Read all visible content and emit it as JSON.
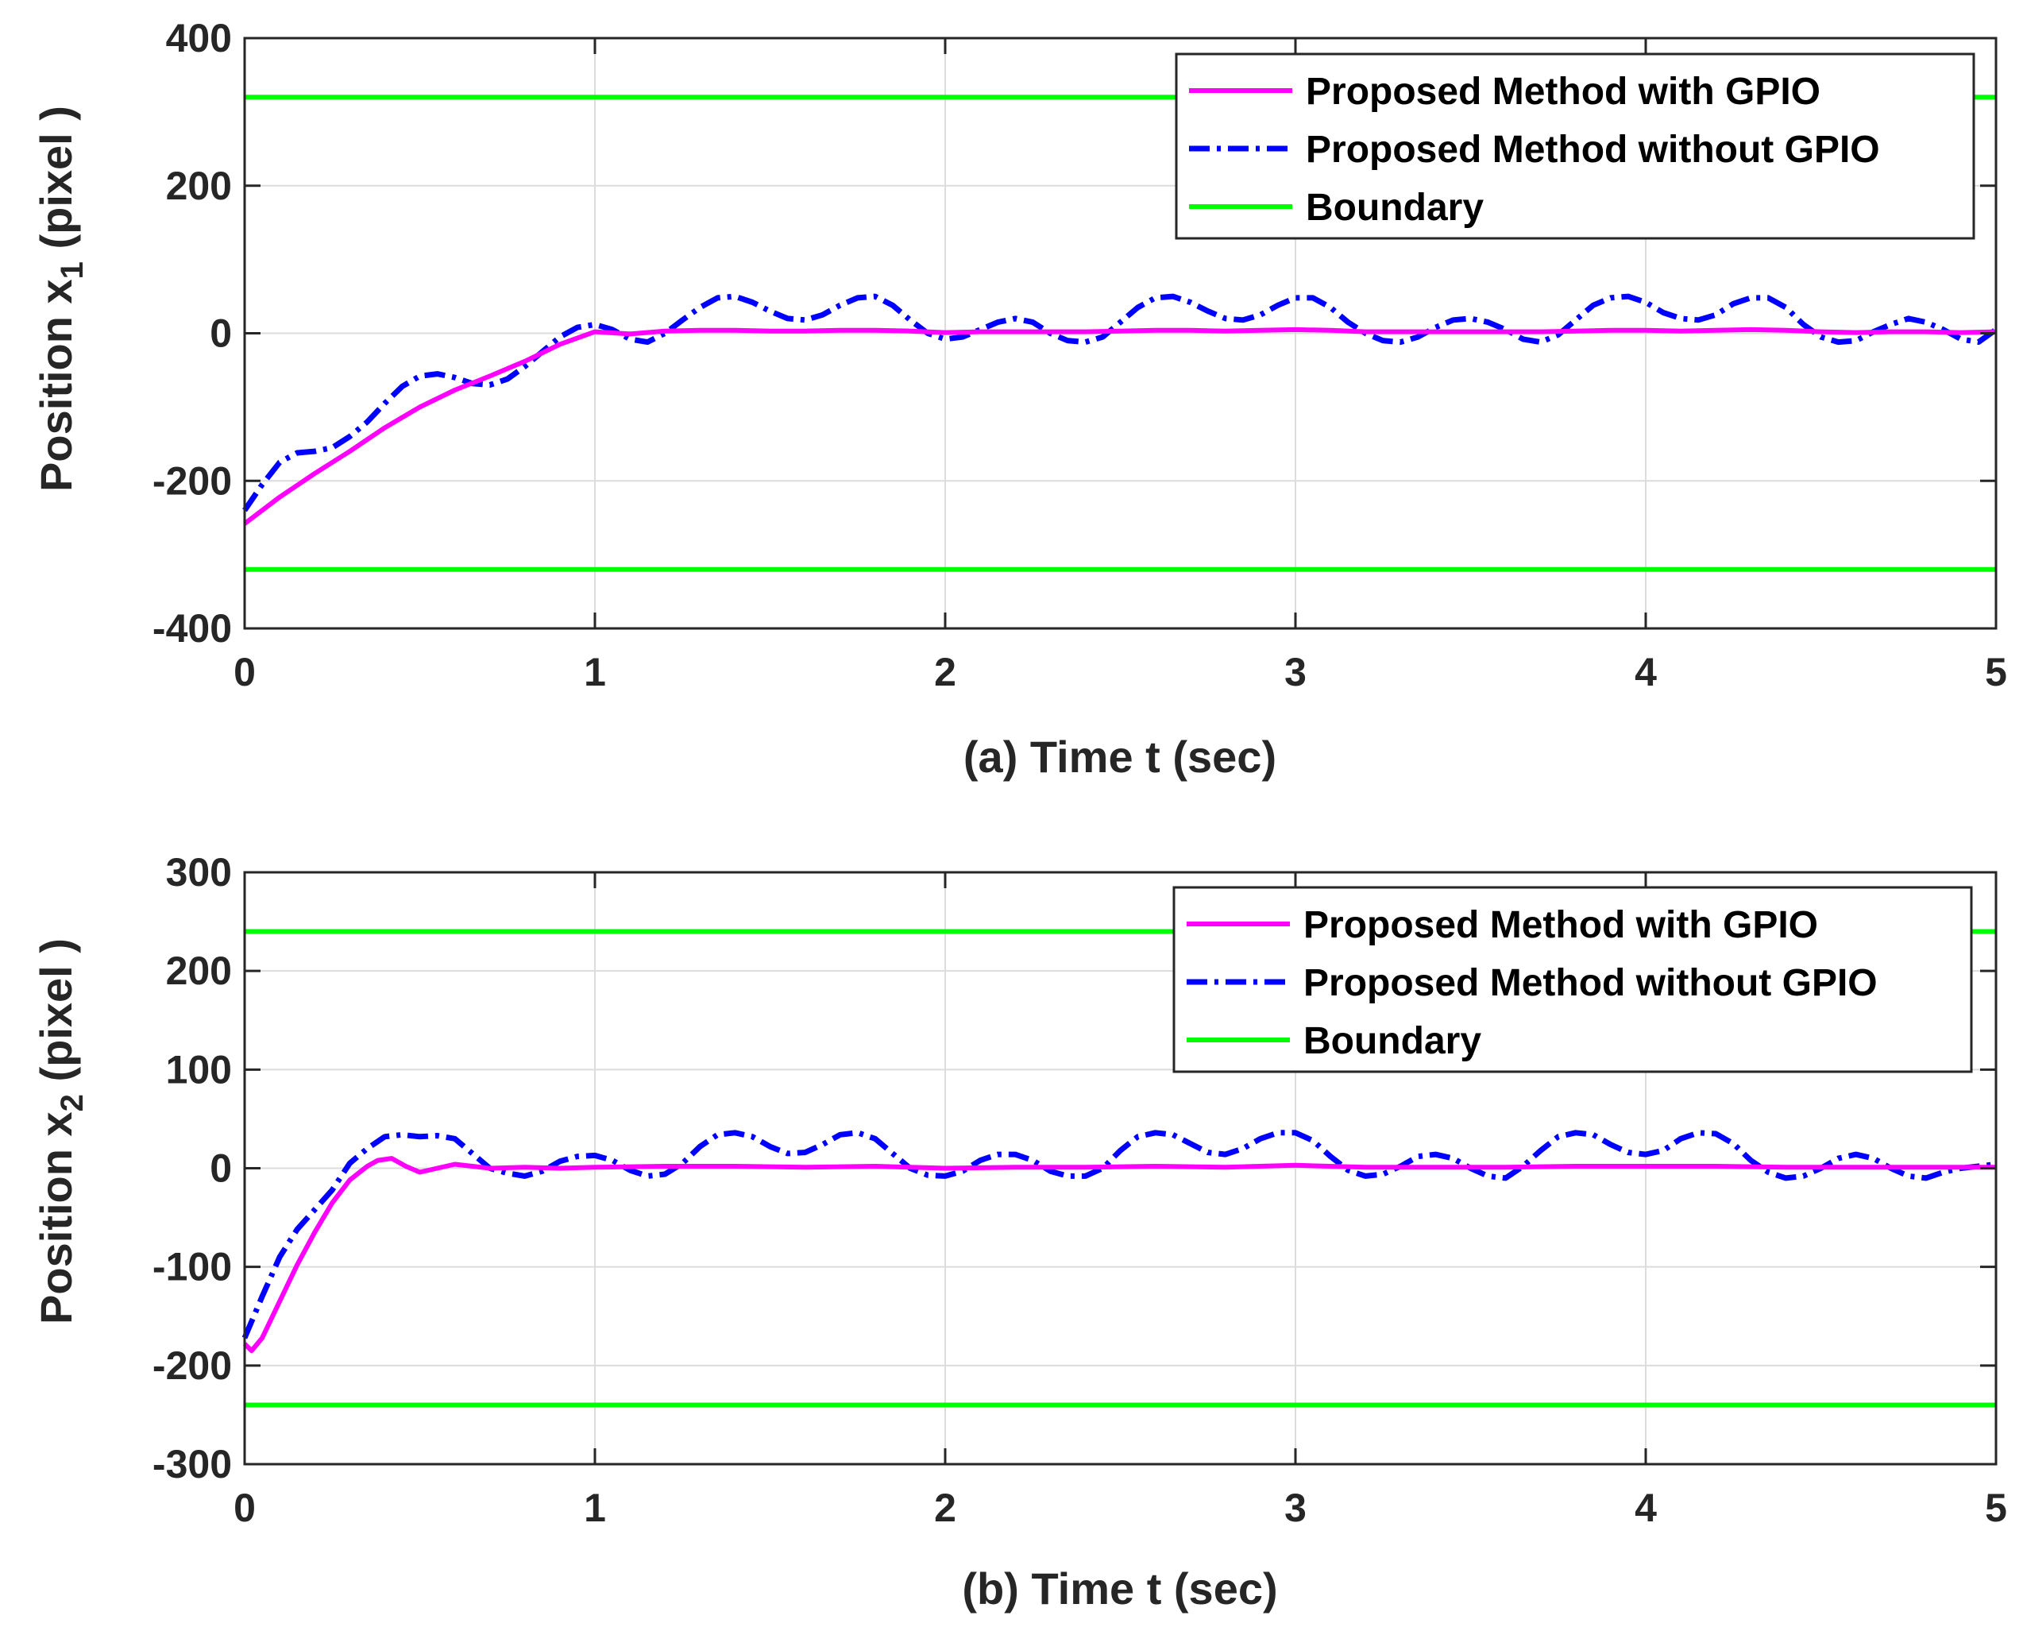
{
  "colors": {
    "with_gpio": "#ff00ff",
    "without_gpio": "#0000ff",
    "boundary": "#00ff00",
    "grid": "#dcdcdc",
    "axis": "#262626"
  },
  "chart_data": [
    {
      "type": "line",
      "panel": "a",
      "xlabel": "(a) Time t (sec)",
      "ylabel": {
        "prefix": "Position x",
        "subscript": "1",
        "suffix": " (pixel )"
      },
      "xlim": [
        0,
        5
      ],
      "ylim": [
        -400,
        400
      ],
      "xticks": [
        0,
        1,
        2,
        3,
        4,
        5
      ],
      "yticks": [
        -400,
        -200,
        0,
        200,
        400
      ],
      "grid": true,
      "legend_position": "top-right",
      "series": [
        {
          "name": "Proposed Method with GPIO",
          "style": "solid",
          "color": "#ff00ff",
          "x": [
            0,
            0.1,
            0.2,
            0.3,
            0.4,
            0.5,
            0.6,
            0.7,
            0.8,
            0.9,
            1.0,
            1.1,
            1.2,
            1.3,
            1.4,
            1.5,
            1.6,
            1.7,
            1.8,
            1.9,
            2.0,
            2.1,
            2.2,
            2.3,
            2.4,
            2.5,
            2.6,
            2.7,
            2.8,
            2.9,
            3.0,
            3.1,
            3.2,
            3.3,
            3.4,
            3.5,
            3.6,
            3.7,
            3.8,
            3.9,
            4.0,
            4.1,
            4.2,
            4.3,
            4.4,
            4.5,
            4.6,
            4.7,
            4.8,
            4.9,
            5.0
          ],
          "y": [
            -258,
            -222,
            -190,
            -160,
            -128,
            -100,
            -77,
            -58,
            -38,
            -15,
            2,
            -1,
            3,
            4,
            4,
            3,
            3,
            4,
            4,
            3,
            1,
            2,
            2,
            2,
            2,
            3,
            4,
            4,
            3,
            4,
            5,
            4,
            2,
            2,
            2,
            2,
            2,
            2,
            3,
            4,
            4,
            3,
            4,
            5,
            4,
            2,
            1,
            2,
            2,
            1,
            2
          ]
        },
        {
          "name": "Proposed Method without GPIO",
          "style": "dashdot",
          "color": "#0000ff",
          "x": [
            0,
            0.05,
            0.1,
            0.15,
            0.2,
            0.25,
            0.3,
            0.35,
            0.4,
            0.45,
            0.5,
            0.55,
            0.6,
            0.65,
            0.7,
            0.75,
            0.8,
            0.85,
            0.9,
            0.95,
            1.0,
            1.05,
            1.1,
            1.15,
            1.2,
            1.25,
            1.3,
            1.35,
            1.4,
            1.45,
            1.5,
            1.55,
            1.6,
            1.65,
            1.7,
            1.75,
            1.8,
            1.85,
            1.9,
            1.95,
            2.0,
            2.05,
            2.1,
            2.15,
            2.2,
            2.25,
            2.3,
            2.35,
            2.4,
            2.45,
            2.5,
            2.55,
            2.6,
            2.65,
            2.7,
            2.75,
            2.8,
            2.85,
            2.9,
            2.95,
            3.0,
            3.05,
            3.1,
            3.15,
            3.2,
            3.25,
            3.3,
            3.35,
            3.4,
            3.45,
            3.5,
            3.55,
            3.6,
            3.65,
            3.7,
            3.75,
            3.8,
            3.85,
            3.9,
            3.95,
            4.0,
            4.05,
            4.1,
            4.15,
            4.2,
            4.25,
            4.3,
            4.35,
            4.4,
            4.45,
            4.5,
            4.55,
            4.6,
            4.65,
            4.7,
            4.75,
            4.8,
            4.85,
            4.9,
            4.95,
            5.0
          ],
          "y": [
            -240,
            -205,
            -175,
            -162,
            -160,
            -155,
            -140,
            -120,
            -95,
            -72,
            -58,
            -55,
            -60,
            -68,
            -70,
            -62,
            -45,
            -25,
            -5,
            8,
            12,
            5,
            -8,
            -12,
            0,
            18,
            35,
            48,
            50,
            42,
            30,
            20,
            18,
            25,
            38,
            48,
            50,
            38,
            18,
            0,
            -8,
            -5,
            5,
            15,
            20,
            15,
            0,
            -10,
            -12,
            -5,
            15,
            35,
            48,
            50,
            42,
            30,
            20,
            18,
            25,
            38,
            48,
            48,
            35,
            15,
            0,
            -10,
            -12,
            -5,
            8,
            18,
            20,
            15,
            5,
            -8,
            -12,
            -2,
            18,
            38,
            48,
            50,
            42,
            28,
            20,
            18,
            25,
            40,
            48,
            48,
            35,
            12,
            -5,
            -12,
            -10,
            2,
            12,
            20,
            15,
            5,
            -8,
            -12,
            5
          ]
        },
        {
          "name": "Boundary",
          "style": "solid",
          "color": "#00ff00",
          "x": [
            0,
            5
          ],
          "y": [
            320,
            320
          ]
        },
        {
          "name": "Boundary (lower)",
          "legend": false,
          "style": "solid",
          "color": "#00ff00",
          "x": [
            0,
            5
          ],
          "y": [
            -320,
            -320
          ]
        }
      ]
    },
    {
      "type": "line",
      "panel": "b",
      "xlabel": "(b) Time t (sec)",
      "ylabel": {
        "prefix": "Position x",
        "subscript": "2",
        "suffix": " (pixel )"
      },
      "xlim": [
        0,
        5
      ],
      "ylim": [
        -300,
        300
      ],
      "xticks": [
        0,
        1,
        2,
        3,
        4,
        5
      ],
      "yticks": [
        -300,
        -200,
        -100,
        0,
        100,
        200,
        300
      ],
      "grid": true,
      "legend_position": "top-right",
      "series": [
        {
          "name": "Proposed Method with GPIO",
          "style": "solid",
          "color": "#ff00ff",
          "x": [
            0,
            0.02,
            0.05,
            0.1,
            0.15,
            0.2,
            0.25,
            0.3,
            0.35,
            0.38,
            0.42,
            0.46,
            0.5,
            0.55,
            0.6,
            0.65,
            0.7,
            0.8,
            0.9,
            1.0,
            1.2,
            1.4,
            1.6,
            1.8,
            2.0,
            2.2,
            2.4,
            2.6,
            2.8,
            3.0,
            3.2,
            3.4,
            3.6,
            3.8,
            4.0,
            4.2,
            4.4,
            4.6,
            4.8,
            5.0
          ],
          "y": [
            -178,
            -185,
            -172,
            -135,
            -98,
            -65,
            -35,
            -12,
            2,
            8,
            10,
            2,
            -4,
            0,
            4,
            2,
            0,
            1,
            0,
            1,
            2,
            2,
            1,
            2,
            0,
            1,
            1,
            2,
            1,
            3,
            1,
            1,
            1,
            2,
            2,
            2,
            1,
            1,
            1,
            1
          ]
        },
        {
          "name": "Proposed Method without GPIO",
          "style": "dashdot",
          "color": "#0000ff",
          "x": [
            0,
            0.05,
            0.1,
            0.15,
            0.2,
            0.25,
            0.3,
            0.35,
            0.4,
            0.45,
            0.5,
            0.55,
            0.6,
            0.65,
            0.7,
            0.75,
            0.8,
            0.85,
            0.9,
            0.95,
            1.0,
            1.05,
            1.1,
            1.15,
            1.2,
            1.25,
            1.3,
            1.35,
            1.4,
            1.45,
            1.5,
            1.55,
            1.6,
            1.65,
            1.7,
            1.75,
            1.8,
            1.85,
            1.9,
            1.95,
            2.0,
            2.05,
            2.1,
            2.15,
            2.2,
            2.25,
            2.3,
            2.35,
            2.4,
            2.45,
            2.5,
            2.55,
            2.6,
            2.65,
            2.7,
            2.75,
            2.8,
            2.85,
            2.9,
            2.95,
            3.0,
            3.05,
            3.1,
            3.15,
            3.2,
            3.25,
            3.3,
            3.35,
            3.4,
            3.45,
            3.5,
            3.55,
            3.6,
            3.65,
            3.7,
            3.75,
            3.8,
            3.85,
            3.9,
            3.95,
            4.0,
            4.05,
            4.1,
            4.15,
            4.2,
            4.25,
            4.3,
            4.35,
            4.4,
            4.45,
            4.5,
            4.55,
            4.6,
            4.65,
            4.7,
            4.75,
            4.8,
            4.85,
            4.9,
            4.95,
            5.0
          ],
          "y": [
            -172,
            -130,
            -90,
            -62,
            -42,
            -22,
            5,
            20,
            32,
            34,
            32,
            33,
            30,
            15,
            0,
            -5,
            -8,
            -3,
            7,
            12,
            13,
            8,
            -2,
            -8,
            -6,
            5,
            22,
            34,
            36,
            32,
            22,
            15,
            16,
            24,
            34,
            36,
            30,
            15,
            0,
            -7,
            -8,
            -3,
            8,
            14,
            14,
            8,
            -3,
            -8,
            -8,
            0,
            18,
            32,
            36,
            34,
            25,
            16,
            14,
            20,
            30,
            36,
            36,
            28,
            12,
            -2,
            -8,
            -6,
            2,
            12,
            14,
            10,
            0,
            -8,
            -10,
            2,
            18,
            32,
            36,
            34,
            24,
            16,
            14,
            18,
            30,
            36,
            35,
            25,
            8,
            -4,
            -10,
            -8,
            0,
            10,
            14,
            10,
            0,
            -8,
            -10,
            -4,
            0,
            2,
            4
          ]
        },
        {
          "name": "Boundary",
          "style": "solid",
          "color": "#00ff00",
          "x": [
            0,
            5
          ],
          "y": [
            240,
            240
          ]
        },
        {
          "name": "Boundary (lower)",
          "legend": false,
          "style": "solid",
          "color": "#00ff00",
          "x": [
            0,
            5
          ],
          "y": [
            -240,
            -240
          ]
        }
      ]
    }
  ]
}
